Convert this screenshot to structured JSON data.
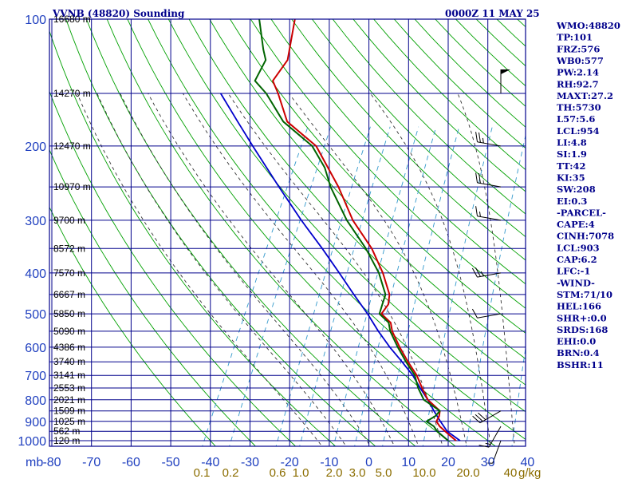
{
  "header": {
    "station": "VVNB (48820) Sounding",
    "datetime": "0000Z 11 MAY 25"
  },
  "colors": {
    "frame": "#00008b",
    "isobar": "#00008b",
    "isotherm": "#00008b",
    "dry_adiabat": "#00a000",
    "moist_adiabat": "#333333",
    "mixing_ratio": "#3399cc",
    "temperature": "#cc0000",
    "dewpoint": "#006400",
    "parcel": "#0000cc",
    "wind_barb": "#000000"
  },
  "chart_data": {
    "type": "skew-t",
    "pressure_range_hpa": [
      1000,
      100
    ],
    "temperature_range_c_at_1000": [
      -80,
      40
    ],
    "pressure_levels": [
      {
        "label": "100",
        "p": 100
      },
      {
        "label": "200",
        "p": 200
      },
      {
        "label": "300",
        "p": 300
      },
      {
        "label": "400",
        "p": 400
      },
      {
        "label": "500",
        "p": 500
      },
      {
        "label": "600",
        "p": 600
      },
      {
        "label": "700",
        "p": 700
      },
      {
        "label": "800",
        "p": 800
      },
      {
        "label": "900",
        "p": 900
      },
      {
        "label": "1000",
        "p": 1000
      }
    ],
    "height_labels": [
      {
        "label": "16680 m",
        "p": 100
      },
      {
        "label": "14270 m",
        "p": 150
      },
      {
        "label": "12470 m",
        "p": 200
      },
      {
        "label": "10970 m",
        "p": 250
      },
      {
        "label": "9700 m",
        "p": 300
      },
      {
        "label": "8572 m",
        "p": 350
      },
      {
        "label": "7570 m",
        "p": 400
      },
      {
        "label": "6667 m",
        "p": 450
      },
      {
        "label": "5850 m",
        "p": 500
      },
      {
        "label": "5090 m",
        "p": 550
      },
      {
        "label": "4386 m",
        "p": 600
      },
      {
        "label": "3740 m",
        "p": 650
      },
      {
        "label": "3141 m",
        "p": 700
      },
      {
        "label": "2553 m",
        "p": 750
      },
      {
        "label": "2021 m",
        "p": 800
      },
      {
        "label": "1509 m",
        "p": 850
      },
      {
        "label": "1025 m",
        "p": 900
      },
      {
        "label": "562 m",
        "p": 950
      },
      {
        "label": "120 m",
        "p": 1000
      }
    ],
    "pressure_axis_unit": "mb",
    "temperature_ticks": [
      "-80",
      "-70",
      "-60",
      "-50",
      "-40",
      "-30",
      "-20",
      "-10",
      "0",
      "10",
      "20",
      "30",
      "40"
    ],
    "mixing_ratio_ticks": [
      "0.1",
      "0.2",
      "0.6",
      "1.0",
      "2.0",
      "3.0",
      "5.0",
      "10.0",
      "20.0",
      "40"
    ],
    "mixing_ratio_unit": "g/kg",
    "temperature_profile": [
      {
        "p": 1000,
        "t": 22.0
      },
      {
        "p": 975,
        "t": 20.0
      },
      {
        "p": 950,
        "t": 18.0
      },
      {
        "p": 925,
        "t": 16.0
      },
      {
        "p": 900,
        "t": 14.5
      },
      {
        "p": 875,
        "t": 14.5
      },
      {
        "p": 850,
        "t": 14.0
      },
      {
        "p": 800,
        "t": 9.5
      },
      {
        "p": 750,
        "t": 6.5
      },
      {
        "p": 700,
        "t": 3.5
      },
      {
        "p": 650,
        "t": -0.5
      },
      {
        "p": 600,
        "t": -4.5
      },
      {
        "p": 550,
        "t": -8.5
      },
      {
        "p": 525,
        "t": -10.0
      },
      {
        "p": 500,
        "t": -13.5
      },
      {
        "p": 475,
        "t": -13.0
      },
      {
        "p": 450,
        "t": -14.0
      },
      {
        "p": 400,
        "t": -18.5
      },
      {
        "p": 350,
        "t": -24.5
      },
      {
        "p": 300,
        "t": -33.0
      },
      {
        "p": 250,
        "t": -41.0
      },
      {
        "p": 200,
        "t": -52.0
      },
      {
        "p": 175,
        "t": -62.5
      },
      {
        "p": 150,
        "t": -68.5
      },
      {
        "p": 140,
        "t": -71.5
      },
      {
        "p": 125,
        "t": -70.5
      },
      {
        "p": 100,
        "t": -74.0
      }
    ],
    "dewpoint_profile": [
      {
        "p": 1000,
        "td": 20.0
      },
      {
        "p": 975,
        "td": 18.0
      },
      {
        "p": 950,
        "td": 16.0
      },
      {
        "p": 925,
        "td": 14.5
      },
      {
        "p": 900,
        "td": 12.0
      },
      {
        "p": 875,
        "td": 13.5
      },
      {
        "p": 850,
        "td": 14.0
      },
      {
        "p": 800,
        "td": 8.5
      },
      {
        "p": 750,
        "td": 5.5
      },
      {
        "p": 700,
        "td": 3.0
      },
      {
        "p": 650,
        "td": -1.0
      },
      {
        "p": 600,
        "td": -5.0
      },
      {
        "p": 550,
        "td": -9.0
      },
      {
        "p": 525,
        "td": -10.5
      },
      {
        "p": 500,
        "td": -14.0
      },
      {
        "p": 475,
        "td": -14.5
      },
      {
        "p": 450,
        "td": -15.0
      },
      {
        "p": 400,
        "td": -19.5
      },
      {
        "p": 350,
        "td": -26.0
      },
      {
        "p": 300,
        "td": -34.5
      },
      {
        "p": 250,
        "td": -43.0
      },
      {
        "p": 225,
        "td": -47.0
      },
      {
        "p": 200,
        "td": -53.0
      },
      {
        "p": 175,
        "td": -63.5
      },
      {
        "p": 150,
        "td": -71.5
      },
      {
        "p": 140,
        "td": -76.0
      },
      {
        "p": 125,
        "td": -76.0
      },
      {
        "p": 118,
        "td": -78.0
      },
      {
        "p": 100,
        "td": -83.0
      }
    ],
    "parcel_profile": [
      {
        "p": 1000,
        "t": 23.0
      },
      {
        "p": 950,
        "t": 18.5
      },
      {
        "p": 900,
        "t": 15.5
      },
      {
        "p": 850,
        "t": 12.5
      },
      {
        "p": 800,
        "t": 9.5
      },
      {
        "p": 750,
        "t": 6.0
      },
      {
        "p": 700,
        "t": 2.5
      },
      {
        "p": 650,
        "t": -2.0
      },
      {
        "p": 600,
        "t": -7.0
      },
      {
        "p": 550,
        "t": -12.0
      },
      {
        "p": 500,
        "t": -17.0
      },
      {
        "p": 450,
        "t": -23.0
      },
      {
        "p": 400,
        "t": -29.5
      },
      {
        "p": 350,
        "t": -37.0
      },
      {
        "p": 300,
        "t": -46.0
      },
      {
        "p": 250,
        "t": -56.0
      },
      {
        "p": 200,
        "t": -68.0
      },
      {
        "p": 175,
        "t": -75.0
      },
      {
        "p": 150,
        "t": -83.0
      }
    ],
    "wind_barbs": [
      {
        "p": 1000,
        "dir": 200,
        "spd": 5
      },
      {
        "p": 925,
        "dir": 210,
        "spd": 15
      },
      {
        "p": 850,
        "dir": 240,
        "spd": 30
      },
      {
        "p": 500,
        "dir": 260,
        "spd": 10
      },
      {
        "p": 400,
        "dir": 260,
        "spd": 25
      },
      {
        "p": 300,
        "dir": 280,
        "spd": 15
      },
      {
        "p": 250,
        "dir": 280,
        "spd": 20
      },
      {
        "p": 200,
        "dir": 280,
        "spd": 25
      },
      {
        "p": 150,
        "dir": 0,
        "spd": 50
      }
    ]
  },
  "indices": [
    "WMO:48820",
    "TP:101",
    "FRZ:576",
    "WB0:577",
    "PW:2.14",
    "RH:92.7",
    "MAXT:27.2",
    "TH:5730",
    "L57:5.6",
    "LCL:954",
    "LI:4.8",
    "SI:1.9",
    "TT:42",
    "KI:35",
    "SW:208",
    "EI:0.3",
    "-PARCEL-",
    "CAPE:4",
    "CINH:7078",
    "LCL:903",
    "CAP:6.2",
    "LFC:-1",
    "-WIND-",
    "STM:71/10",
    "HEL:166",
    "SHR+:0.0",
    "SRDS:168",
    "EHI:0.0",
    "BRN:0.4",
    "BSHR:11"
  ]
}
